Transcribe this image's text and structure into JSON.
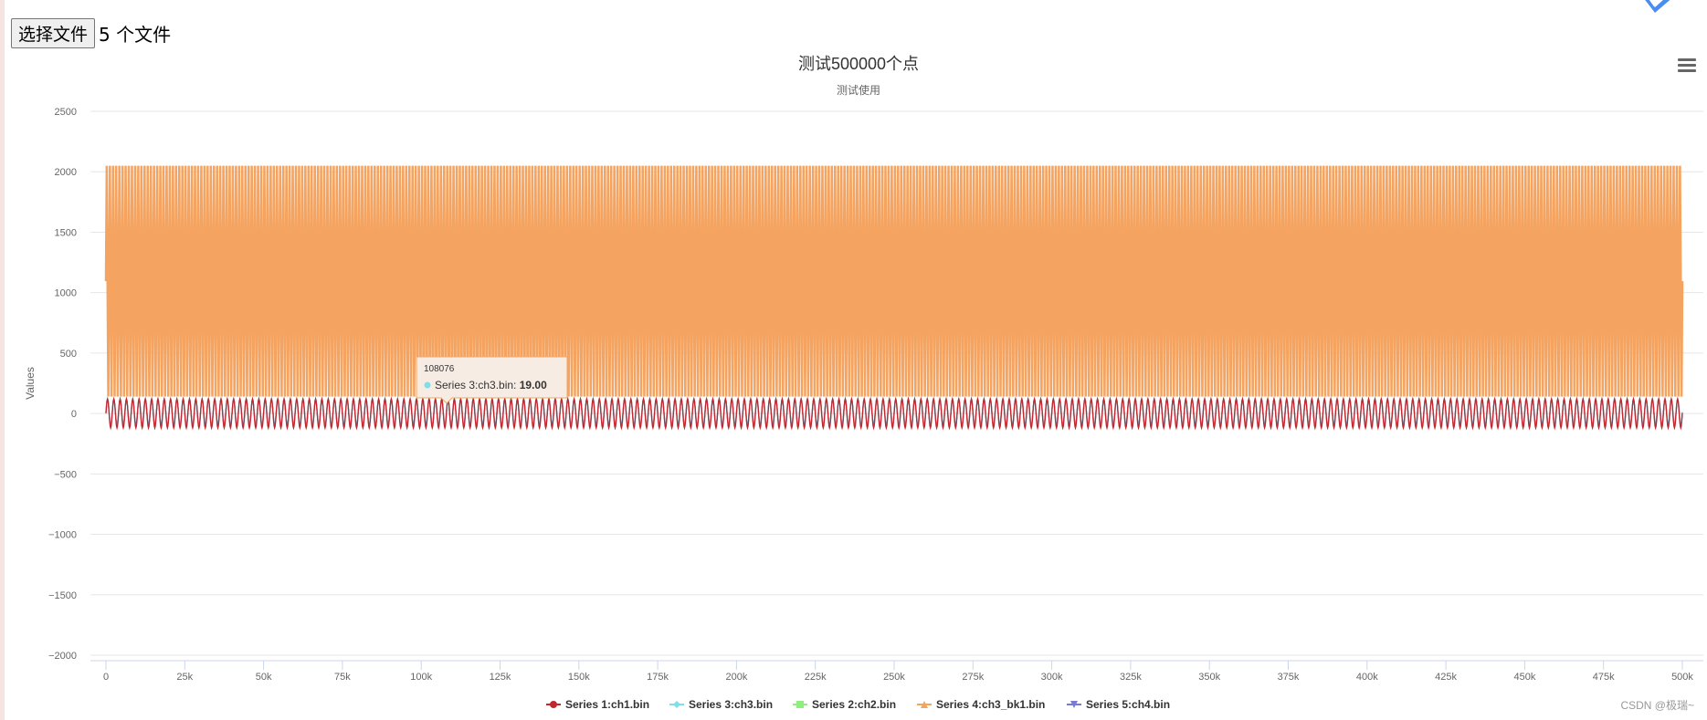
{
  "file_input": {
    "button_label": "选择文件",
    "status": "5 个文件"
  },
  "menu": {
    "icon": "hamburger-menu-icon"
  },
  "logo": {
    "icon": "blue-badge-icon"
  },
  "watermark": "CSDN @极瑞~",
  "chart_data": {
    "type": "line",
    "title": "测试500000个点",
    "subtitle": "测试使用",
    "xlabel": "",
    "ylabel": "Values",
    "xlim": [
      0,
      500000
    ],
    "ylim": [
      -2000,
      2500
    ],
    "x_ticks": [
      0,
      25000,
      50000,
      75000,
      100000,
      125000,
      150000,
      175000,
      200000,
      225000,
      250000,
      275000,
      300000,
      325000,
      350000,
      375000,
      400000,
      425000,
      450000,
      475000,
      500000
    ],
    "x_tick_labels": [
      "0",
      "25k",
      "50k",
      "75k",
      "100k",
      "125k",
      "150k",
      "175k",
      "200k",
      "225k",
      "250k",
      "275k",
      "300k",
      "325k",
      "350k",
      "375k",
      "400k",
      "425k",
      "450k",
      "475k",
      "500k"
    ],
    "y_ticks": [
      -2000,
      -1500,
      -1000,
      -500,
      0,
      500,
      1000,
      1500,
      2000,
      2500
    ],
    "y_tick_labels": [
      "−2000",
      "−1500",
      "−1000",
      "−500",
      "0",
      "500",
      "1000",
      "1500",
      "2000",
      "2500"
    ],
    "grid": true,
    "legend_position": "bottom-center",
    "series": [
      {
        "name": "Series 1:ch1.bin",
        "color": "#c1272d",
        "marker": "circle",
        "pattern": "sine",
        "min": -120,
        "max": 120,
        "cycles": 250
      },
      {
        "name": "Series 3:ch3.bin",
        "color": "#80deea",
        "marker": "diamond",
        "pattern": "sine",
        "min": -100,
        "max": 120,
        "cycles": 250
      },
      {
        "name": "Series 2:ch2.bin",
        "color": "#90ee7e",
        "marker": "square",
        "pattern": "sine",
        "min": -100,
        "max": 120,
        "cycles": 250
      },
      {
        "name": "Series 4:ch3_bk1.bin",
        "color": "#f4a460",
        "marker": "triangle",
        "pattern": "dense-band",
        "min": 140,
        "max": 2050,
        "cycles": 500
      },
      {
        "name": "Series 5:ch4.bin",
        "color": "#7b7bd6",
        "marker": "triangle-down",
        "pattern": "sine",
        "min": -100,
        "max": 120,
        "cycles": 250
      }
    ],
    "tooltip": {
      "x": 108076,
      "series": "Series 3:ch3.bin",
      "value": "19.00",
      "color": "#80deea"
    }
  }
}
